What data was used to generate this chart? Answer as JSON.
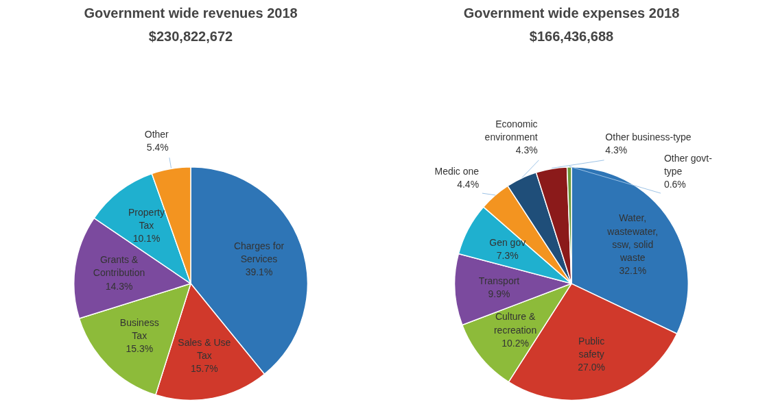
{
  "chart_data": [
    {
      "type": "pie",
      "title": "Government wide revenues 2018",
      "subtitle": "$230,822,672",
      "categories": [
        "Charges for\nServices",
        "Sales & Use\nTax",
        "Business\nTax",
        "Grants &\nContribution",
        "Property\nTax",
        "Other"
      ],
      "values": [
        39.1,
        15.7,
        15.3,
        14.3,
        10.1,
        5.4
      ],
      "value_labels": [
        "39.1%",
        "15.7%",
        "15.3%",
        "14.3%",
        "10.1%",
        "5.4%"
      ],
      "colors": [
        "#2e75b6",
        "#d0392b",
        "#8dbb3a",
        "#7b4a9e",
        "#1fb0cf",
        "#f39420"
      ]
    },
    {
      "type": "pie",
      "title": "Government wide expenses 2018",
      "subtitle": "$166,436,688",
      "categories": [
        "Water,\nwastewater,\nssw, solid\nwaste",
        "Public\nsafety",
        "Culture &\nrecreation",
        "Transport",
        "Gen gov",
        "Medic one",
        "Economic\nenvironment",
        "Other business-type",
        "Other govt-\ntype"
      ],
      "values": [
        32.1,
        27.0,
        10.2,
        9.9,
        7.3,
        4.4,
        4.3,
        4.3,
        0.6
      ],
      "value_labels": [
        "32.1%",
        "27.0%",
        "10.2%",
        "9.9%",
        "7.3%",
        "4.4%",
        "4.3%",
        "4.3%",
        "0.6%"
      ],
      "colors": [
        "#2e75b6",
        "#d0392b",
        "#8dbb3a",
        "#7b4a9e",
        "#1fb0cf",
        "#f39420",
        "#1f4e79",
        "#8b1a1a",
        "#6a9a3a"
      ]
    }
  ]
}
